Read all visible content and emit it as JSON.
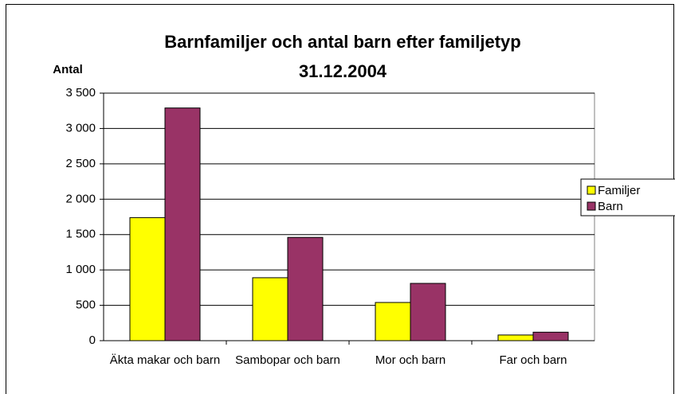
{
  "chart_data": {
    "type": "bar",
    "title": "Barnfamiljer och antal barn efter familjetyp 31.12.2004",
    "y_label": "Antal",
    "categories": [
      "Äkta makar och barn",
      "Sambopar och barn",
      "Mor och barn",
      "Far och barn"
    ],
    "series": [
      {
        "name": "Familjer",
        "color": "#ffff00",
        "values": [
          1740,
          890,
          540,
          80
        ]
      },
      {
        "name": "Barn",
        "color": "#993366",
        "values": [
          3290,
          1460,
          810,
          120
        ]
      }
    ],
    "ylim": [
      0,
      3500
    ],
    "yticks": [
      0,
      500,
      {
        "value": 1000,
        "label": "1 000"
      },
      {
        "value": 1500,
        "label": "1 500"
      },
      {
        "value": 2000,
        "label": "2 000"
      },
      {
        "value": 2500,
        "label": "2 500"
      },
      {
        "value": 3000,
        "label": "3 000"
      },
      {
        "value": 3500,
        "label": "3 500"
      }
    ],
    "grid": true,
    "legend": "right"
  }
}
